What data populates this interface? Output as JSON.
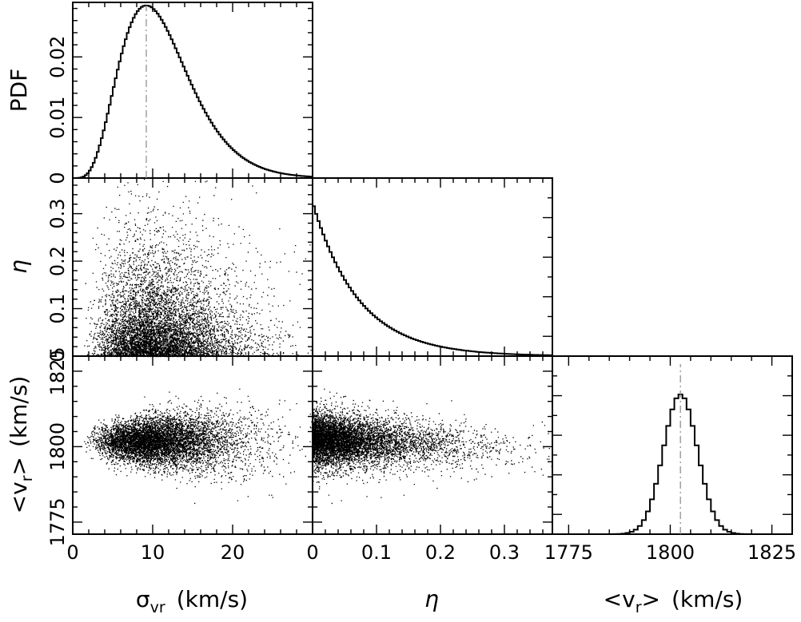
{
  "chart_data": {
    "type": "corner-plot",
    "description_labels": {
      "x_labels": {
        "sigma": {
          "main": "σ",
          "sub": "vr",
          "units": "(km/s)"
        },
        "eta": {
          "main": "η"
        },
        "vr": {
          "main": "<v",
          "sub": "r",
          "tail": ">",
          "units": "(km/s)"
        }
      },
      "y_labels": {
        "pdf": {
          "main": "PDF"
        },
        "eta": {
          "main": "η"
        },
        "vr": {
          "main": "<v",
          "sub": "r",
          "tail": ">",
          "units": "(km/s)"
        }
      }
    },
    "axes": {
      "sigma": {
        "range": [
          0,
          30
        ],
        "ticks": [
          0,
          10,
          20
        ],
        "tick_labels": [
          "0",
          "10",
          "20"
        ]
      },
      "eta": {
        "range": [
          0,
          0.375
        ],
        "ticks": [
          0,
          0.1,
          0.2,
          0.3
        ],
        "tick_labels": [
          "0",
          "0.1",
          "0.2",
          "0.3"
        ]
      },
      "vr": {
        "range": [
          1771,
          1830
        ],
        "ticks": [
          1775,
          1800,
          1825
        ],
        "tick_labels": [
          "1775",
          "1800",
          "1825"
        ]
      },
      "pdf": {
        "range": [
          0,
          0.029
        ],
        "ticks": [
          0,
          0.01,
          0.02
        ],
        "tick_labels": [
          "0",
          "0.01",
          "0.02"
        ]
      }
    },
    "panels": [
      {
        "name": "hist-sigma",
        "type": "step-histogram",
        "x": "sigma",
        "y": "pdf",
        "peak_x": 9.2,
        "peak_pdf": 0.0285,
        "median_marker": 9.2,
        "shape": "right-skewed"
      },
      {
        "name": "hist-eta",
        "type": "step-histogram",
        "x": "eta",
        "shape": "exponential-decay",
        "decay_scale": 0.072
      },
      {
        "name": "hist-vr",
        "type": "step-histogram",
        "x": "vr",
        "mean": 1802.5,
        "std": 4.2,
        "median_marker": 1802.5
      },
      {
        "name": "scatter-sigma-eta",
        "type": "scatter",
        "x": "sigma",
        "y": "eta",
        "points": 7000
      },
      {
        "name": "scatter-sigma-vr",
        "type": "scatter",
        "x": "sigma",
        "y": "vr",
        "points": 7000
      },
      {
        "name": "scatter-eta-vr",
        "type": "scatter",
        "x": "eta",
        "y": "vr",
        "points": 7000
      }
    ]
  }
}
